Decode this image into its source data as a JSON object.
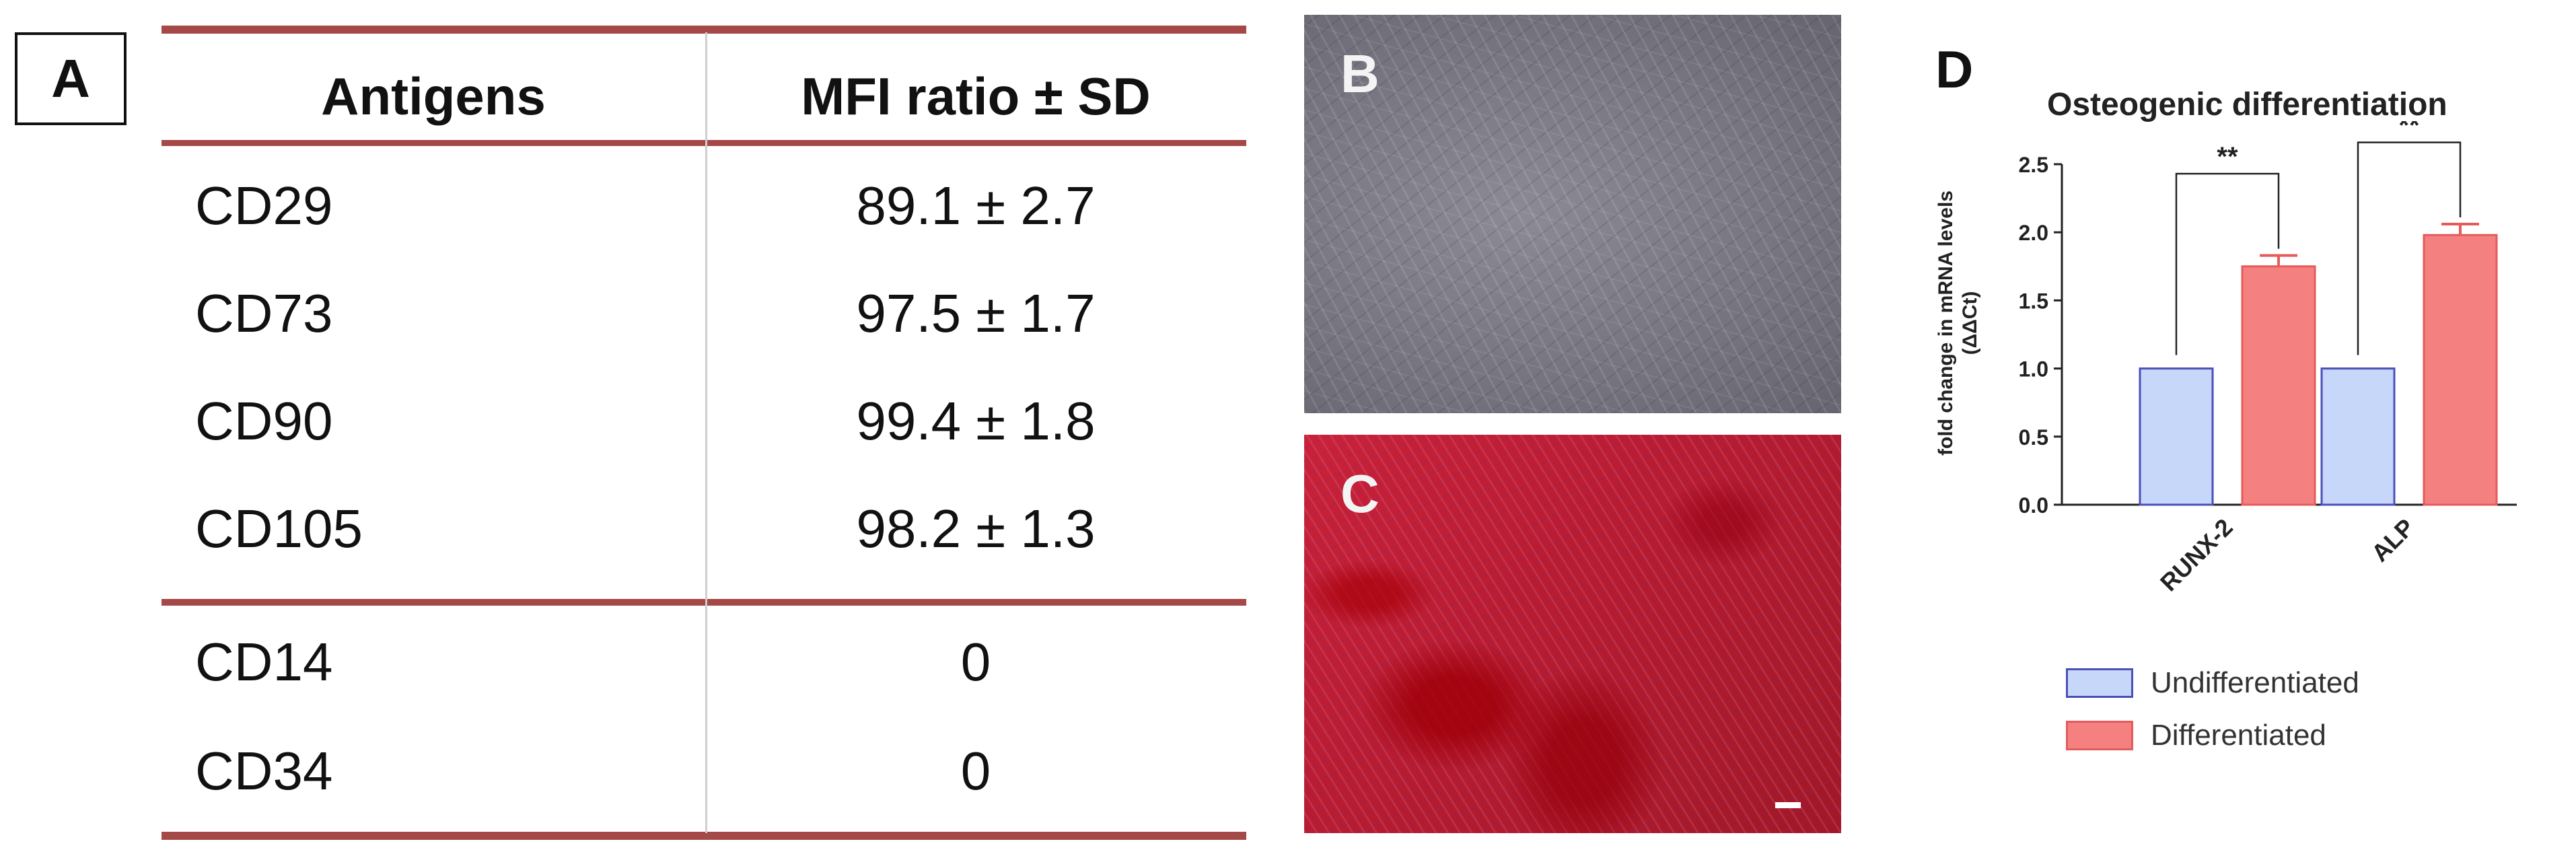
{
  "panels": {
    "a_label": "A",
    "b_label": "B",
    "c_label": "C",
    "d_label": "D"
  },
  "table": {
    "headers": [
      "Antigens",
      "MFI ratio ± SD"
    ],
    "rows": [
      {
        "antigen": "CD29",
        "mfi": "89.1 ± 2.7"
      },
      {
        "antigen": "CD73",
        "mfi": "97.5 ± 1.7"
      },
      {
        "antigen": "CD90",
        "mfi": "99.4 ± 1.8"
      },
      {
        "antigen": "CD105",
        "mfi": "98.2 ± 1.3"
      },
      {
        "antigen": "CD14",
        "mfi": "0"
      },
      {
        "antigen": "CD34",
        "mfi": "0"
      }
    ],
    "rule_color": "#a44848"
  },
  "chart_data": {
    "type": "bar",
    "title": "Osteogenic differentiation",
    "ylabel_line1": "fold change in mRNA levels",
    "ylabel_line2": "(ΔΔCt)",
    "categories": [
      "RUNX-2",
      "ALP"
    ],
    "series": [
      {
        "name": "Undifferentiated",
        "values": [
          1.0,
          1.0
        ],
        "errors": [
          0,
          0
        ],
        "color": "#c6d7fa",
        "edge": "#4b4fb8"
      },
      {
        "name": "Differentiated",
        "values": [
          1.75,
          1.98
        ],
        "errors": [
          0.08,
          0.08
        ],
        "color": "#f58080",
        "edge": "#e65a5a"
      }
    ],
    "significance": [
      "**",
      "**"
    ],
    "ylim": [
      0.0,
      2.5
    ],
    "yticks": [
      "0.0",
      "0.5",
      "1.0",
      "1.5",
      "2.0",
      "2.5"
    ],
    "legend_position": "bottom",
    "grid": false
  }
}
